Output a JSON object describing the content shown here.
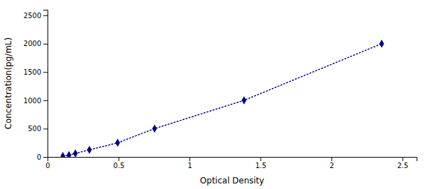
{
  "chart_data": {
    "type": "line",
    "xlabel": "Optical Density",
    "ylabel": "Concentration(pg/mL)",
    "x": [
      0.108,
      0.151,
      0.196,
      0.295,
      0.494,
      0.754,
      1.384,
      2.354
    ],
    "values": [
      15.625,
      31.25,
      62.5,
      125,
      250,
      500,
      1000,
      2000
    ],
    "color": "#00008B",
    "marker": "diamond",
    "line_style": "dotted",
    "xlim": [
      0.0,
      2.6
    ],
    "ylim": [
      0,
      2600
    ],
    "xticks": [
      0,
      0.5,
      1,
      1.5,
      2,
      2.5
    ],
    "yticks": [
      0,
      500,
      1000,
      1500,
      2000,
      2500
    ],
    "grid": false
  }
}
